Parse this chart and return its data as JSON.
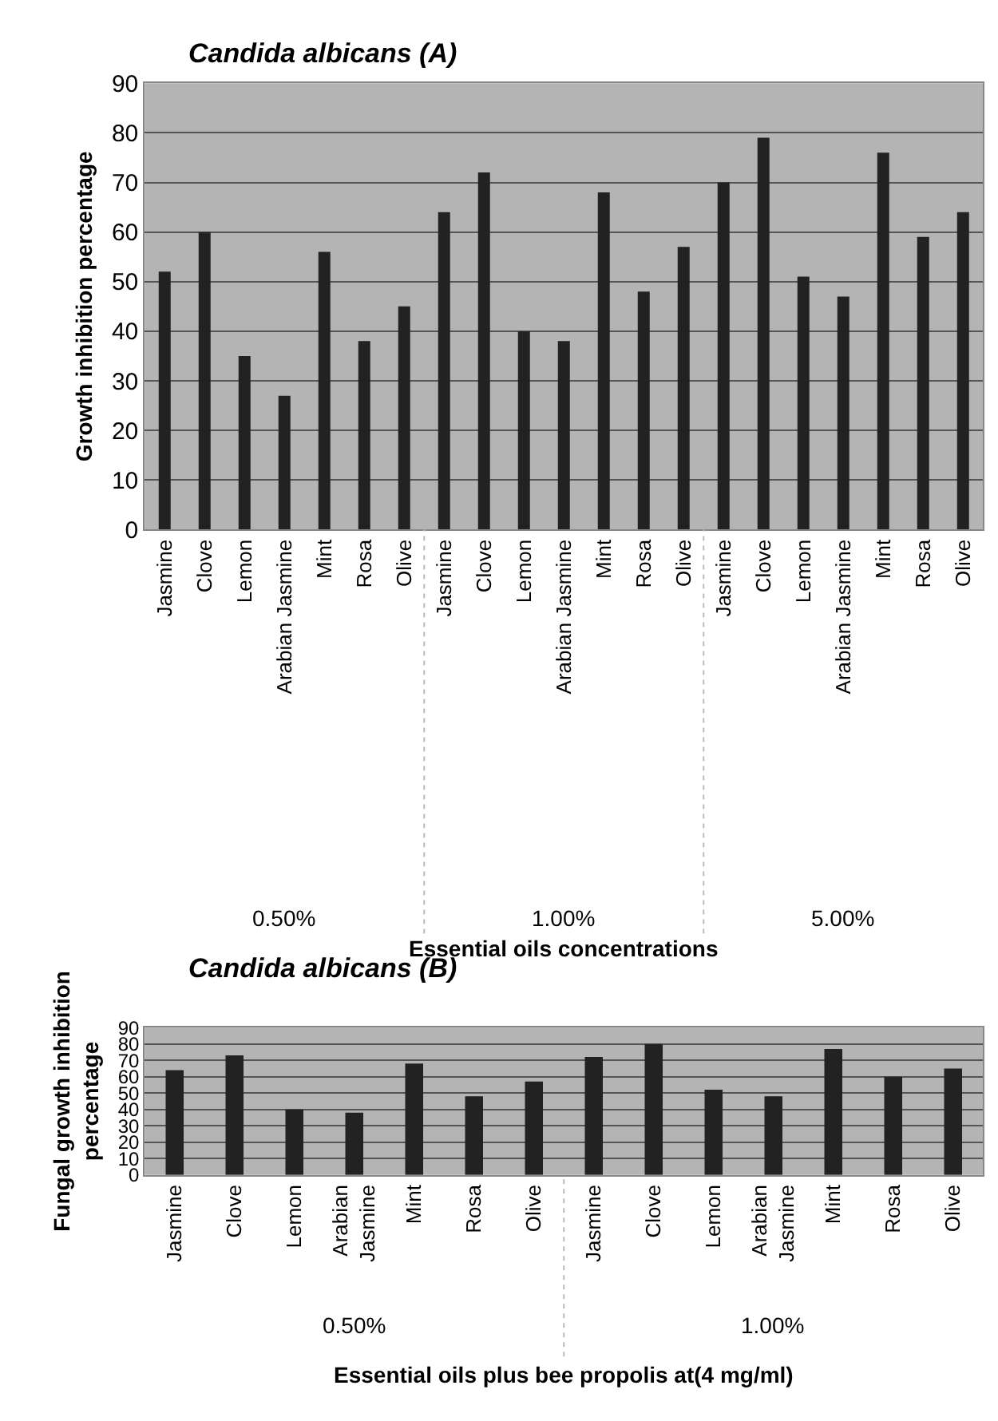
{
  "chart_data": [
    {
      "type": "bar",
      "title": "Candida albicans (A)",
      "xlabel": "Essential oils concentrations",
      "ylabel": "Growth inhibition percentage",
      "categories": [
        "Jasmine",
        "Clove",
        "Lemon",
        "Arabian Jasmine",
        "Mint",
        "Rosa",
        "Olive",
        "Jasmine",
        "Clove",
        "Lemon",
        "Arabian Jasmine",
        "Mint",
        "Rosa",
        "Olive",
        "Jasmine",
        "Clove",
        "Lemon",
        "Arabian Jasmine",
        "Mint",
        "Rosa",
        "Olive"
      ],
      "values": [
        52,
        60,
        35,
        27,
        56,
        38,
        45,
        64,
        72,
        40,
        38,
        68,
        48,
        57,
        70,
        79,
        51,
        47,
        76,
        59,
        64
      ],
      "color": "#222222",
      "ylim": [
        0,
        90
      ],
      "yticks": [
        0,
        10,
        20,
        30,
        40,
        50,
        60,
        70,
        80,
        90
      ],
      "grid": "y",
      "annotations": [
        "0.50%",
        "1.00%",
        "5.00%"
      ]
    },
    {
      "type": "bar",
      "title": "Candida albicans (B)",
      "xlabel": "Essential oils plus bee propolis at(4 mg/ml)",
      "ylabel": "Fungal growth inhibition percentage",
      "categories": [
        "Jasmine",
        "Clove",
        "Lemon",
        "Arabian Jasmine",
        "Mint",
        "Rosa",
        "Olive",
        "Jasmine",
        "Clove",
        "Lemon",
        "Arabian Jasmine",
        "Mint",
        "Rosa",
        "Olive"
      ],
      "values": [
        64,
        73,
        40,
        38,
        68,
        48,
        57,
        72,
        80,
        52,
        48,
        77,
        60,
        65
      ],
      "color": "#222222",
      "ylim": [
        0,
        90
      ],
      "yticks": [
        0,
        10,
        20,
        30,
        40,
        50,
        60,
        70,
        80,
        90
      ],
      "grid": "y",
      "annotations": [
        "0.50%",
        "1.00%"
      ]
    }
  ]
}
